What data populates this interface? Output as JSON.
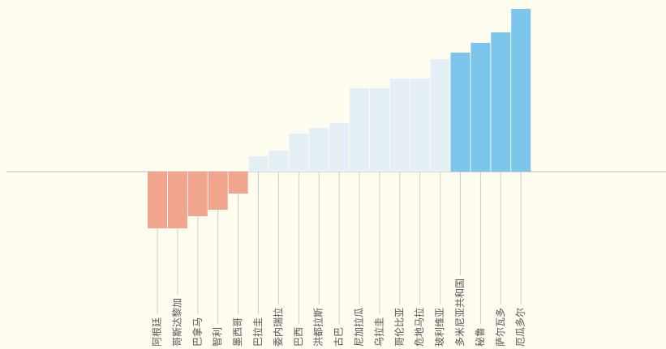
{
  "chart_data": {
    "type": "bar",
    "categories": [
      "阿根廷",
      "哥斯达黎加",
      "巴拿马",
      "智利",
      "墨西哥",
      "巴拉圭",
      "委内瑞拉",
      "巴西",
      "洪都拉斯",
      "古巴",
      "尼加拉瓜",
      "乌拉圭",
      "哥伦比亚",
      "危地马拉",
      "玻利维亚",
      "多米尼亚共和国",
      "秘鲁",
      "萨尔瓦多",
      "厄瓜多尔"
    ],
    "values": [
      -70,
      -70,
      -55,
      -47,
      -27,
      19,
      26,
      47,
      54,
      60,
      103,
      103,
      115,
      115,
      139,
      147,
      159,
      172,
      201
    ],
    "colors": [
      "#f0a58c",
      "#f0a58c",
      "#f0a58c",
      "#f0a58c",
      "#f0a58c",
      "#e4eff6",
      "#e4eff6",
      "#e4eff6",
      "#e4eff6",
      "#e4eff6",
      "#e4eff6",
      "#e4eff6",
      "#e4eff6",
      "#e4eff6",
      "#e4eff6",
      "#7cc5eb",
      "#7cc5eb",
      "#7cc5eb",
      "#7cc5eb"
    ]
  }
}
